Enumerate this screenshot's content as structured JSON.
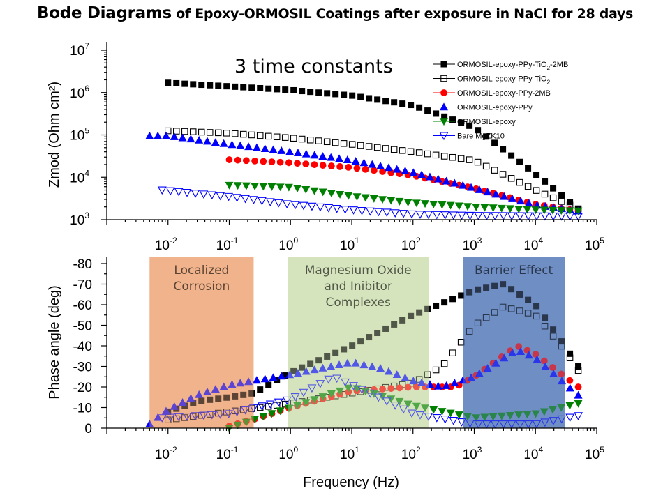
{
  "title": {
    "main": "Bode Diagrams",
    "rest": " of Epoxy-ORMOSIL Coatings after exposure in NaCl for 28 days"
  },
  "chart_data": [
    {
      "type": "scatter",
      "panel": "top",
      "xscale": "log",
      "yscale": "log",
      "xlim": [
        0.001,
        100000
      ],
      "ylim": [
        1000,
        10000000
      ],
      "xlabel": "",
      "ylabel": "Zmod (Ohm cm²)",
      "x_ticks": [
        {
          "b": "10",
          "e": "-2"
        },
        {
          "b": "10",
          "e": "-1"
        },
        {
          "b": "10",
          "e": "0"
        },
        {
          "b": "10",
          "e": "1"
        },
        {
          "b": "10",
          "e": "2"
        },
        {
          "b": "10",
          "e": "3"
        },
        {
          "b": "10",
          "e": "4"
        },
        {
          "b": "10",
          "e": "5"
        }
      ],
      "y_ticks": [
        {
          "b": "10",
          "e": "3"
        },
        {
          "b": "10",
          "e": "4"
        },
        {
          "b": "10",
          "e": "5"
        },
        {
          "b": "10",
          "e": "6"
        },
        {
          "b": "10",
          "e": "7"
        }
      ],
      "annotation": "3 time constants",
      "legend_position": "top-right",
      "legend": [
        {
          "label": "ORMOSIL-epoxy-PPy-TiO",
          "sub": "2",
          "tail": "-2MB"
        },
        {
          "label": "ORMOSIL-epoxy-PPy-TiO",
          "sub": "2",
          "tail": ""
        },
        {
          "label": "ORMOSIL-epoxy-PPy-2MB",
          "sub": "",
          "tail": ""
        },
        {
          "label": "ORMOSIL-epoxy-PPy",
          "sub": "",
          "tail": ""
        },
        {
          "label": "ORMOSIL-epoxy",
          "sub": "",
          "tail": ""
        },
        {
          "label": "Bare MgZK10",
          "sub": "",
          "tail": ""
        }
      ],
      "series": [
        {
          "name": "ORMOSIL-epoxy-PPy-TiO2-2MB",
          "marker": "square",
          "filled": true,
          "color": "#000000",
          "x_range": [
            0.01,
            50000
          ],
          "count": 50,
          "points": [
            [
              0.01,
              1700000
            ],
            [
              0.1,
              1400000
            ],
            [
              1,
              1150000
            ],
            [
              10,
              850000
            ],
            [
              100,
              500000
            ],
            [
              1000,
              150000
            ],
            [
              10000,
              12000
            ],
            [
              50000,
              1800
            ]
          ]
        },
        {
          "name": "ORMOSIL-epoxy-PPy-TiO2",
          "marker": "square",
          "filled": false,
          "color": "#000000",
          "x_range": [
            0.01,
            50000
          ],
          "count": 50,
          "points": [
            [
              0.01,
              125000
            ],
            [
              0.1,
              110000
            ],
            [
              1,
              85000
            ],
            [
              10,
              60000
            ],
            [
              100,
              40000
            ],
            [
              1000,
              25000
            ],
            [
              10000,
              5000
            ],
            [
              50000,
              1800
            ]
          ]
        },
        {
          "name": "ORMOSIL-epoxy-PPy-2MB",
          "marker": "circle",
          "filled": true,
          "color": "#ff0000",
          "x_range": [
            0.1,
            50000
          ],
          "count": 42,
          "points": [
            [
              0.1,
              26000
            ],
            [
              1,
              22000
            ],
            [
              10,
              17000
            ],
            [
              100,
              11000
            ],
            [
              1000,
              5500
            ],
            [
              10000,
              2300
            ],
            [
              50000,
              1600
            ]
          ]
        },
        {
          "name": "ORMOSIL-epoxy-PPy",
          "marker": "triangle-up",
          "filled": true,
          "color": "#0000ff",
          "x_range": [
            0.005,
            50000
          ],
          "count": 53,
          "points": [
            [
              0.005,
              95000
            ],
            [
              0.01,
              95000
            ],
            [
              0.1,
              60000
            ],
            [
              1,
              40000
            ],
            [
              10,
              25000
            ],
            [
              100,
              13000
            ],
            [
              1000,
              5500
            ],
            [
              10000,
              2200
            ],
            [
              50000,
              1600
            ]
          ]
        },
        {
          "name": "ORMOSIL-epoxy",
          "marker": "triangle-down",
          "filled": true,
          "color": "#008000",
          "x_range": [
            0.1,
            50000
          ],
          "count": 42,
          "points": [
            [
              0.1,
              6500
            ],
            [
              1,
              5800
            ],
            [
              10,
              3600
            ],
            [
              100,
              2500
            ],
            [
              1000,
              2000
            ],
            [
              10000,
              1700
            ],
            [
              50000,
              1600
            ]
          ]
        },
        {
          "name": "Bare MgZK10",
          "marker": "triangle-down",
          "filled": false,
          "color": "#0000ff",
          "x_range": [
            0.008,
            50000
          ],
          "count": 51,
          "points": [
            [
              0.008,
              5000
            ],
            [
              0.1,
              3500
            ],
            [
              1,
              2300
            ],
            [
              10,
              1700
            ],
            [
              100,
              1350
            ],
            [
              1000,
              1250
            ],
            [
              50000,
              1200
            ]
          ]
        }
      ]
    },
    {
      "type": "scatter",
      "panel": "bottom",
      "xscale": "log",
      "xlim": [
        0.001,
        100000
      ],
      "ylim": [
        0,
        -80
      ],
      "xlabel": "Frequency (Hz)",
      "ylabel": "Phase angle (deg)",
      "x_ticks": [
        {
          "b": "10",
          "e": "-2"
        },
        {
          "b": "10",
          "e": "-1"
        },
        {
          "b": "10",
          "e": "0"
        },
        {
          "b": "10",
          "e": "1"
        },
        {
          "b": "10",
          "e": "2"
        },
        {
          "b": "10",
          "e": "3"
        },
        {
          "b": "10",
          "e": "4"
        },
        {
          "b": "10",
          "e": "5"
        }
      ],
      "y_ticks": [
        "-80",
        "-70",
        "-60",
        "-50",
        "-40",
        "-30",
        "-20",
        "-10",
        "0"
      ],
      "regions": [
        {
          "lines": [
            "Localized",
            "Corrosion"
          ],
          "x_range": [
            0.005,
            0.25
          ],
          "color": "#f0b48c"
        },
        {
          "lines": [
            "Magnesium Oxide",
            "and Inibitor",
            "Complexes"
          ],
          "x_range": [
            0.9,
            180
          ],
          "color": "#d6e4bc"
        },
        {
          "lines": [
            "Barrier Effect"
          ],
          "x_range": [
            650,
            30000
          ],
          "color": "#6f8fc4"
        }
      ],
      "series": [
        {
          "name": "ORMOSIL-epoxy-PPy-TiO2-2MB",
          "marker": "square",
          "filled": true,
          "color": "#000000",
          "x_range": [
            0.01,
            50000
          ],
          "count": 50,
          "points": [
            [
              0.01,
              -8
            ],
            [
              0.03,
              -13
            ],
            [
              0.1,
              -15
            ],
            [
              0.25,
              -17
            ],
            [
              1,
              -27
            ],
            [
              10,
              -40
            ],
            [
              100,
              -55
            ],
            [
              1000,
              -67
            ],
            [
              3000,
              -70
            ],
            [
              10000,
              -60
            ],
            [
              30000,
              -40
            ],
            [
              50000,
              -30
            ]
          ]
        },
        {
          "name": "ORMOSIL-epoxy-PPy-TiO2",
          "marker": "square",
          "filled": false,
          "color": "#000000",
          "x_range": [
            0.01,
            50000
          ],
          "count": 50,
          "points": [
            [
              0.01,
              -4
            ],
            [
              0.1,
              -8
            ],
            [
              1,
              -12
            ],
            [
              10,
              -17
            ],
            [
              100,
              -22
            ],
            [
              300,
              -30
            ],
            [
              1000,
              -50
            ],
            [
              3000,
              -59
            ],
            [
              10000,
              -55
            ],
            [
              30000,
              -38
            ],
            [
              50000,
              -28
            ]
          ]
        },
        {
          "name": "ORMOSIL-epoxy-PPy-2MB",
          "marker": "circle",
          "filled": true,
          "color": "#ff0000",
          "x_range": [
            0.1,
            50000
          ],
          "count": 42,
          "points": [
            [
              0.1,
              -1
            ],
            [
              0.3,
              -5
            ],
            [
              1,
              -10
            ],
            [
              10,
              -18
            ],
            [
              100,
              -20
            ],
            [
              500,
              -20
            ],
            [
              1000,
              -25
            ],
            [
              5000,
              -40
            ],
            [
              10000,
              -36
            ],
            [
              30000,
              -25
            ],
            [
              50000,
              -20
            ]
          ]
        },
        {
          "name": "ORMOSIL-epoxy-PPy",
          "marker": "triangle-up",
          "filled": true,
          "color": "#0000ff",
          "x_range": [
            0.005,
            50000
          ],
          "count": 53,
          "points": [
            [
              0.005,
              -2
            ],
            [
              0.01,
              -9
            ],
            [
              0.03,
              -16
            ],
            [
              0.1,
              -21
            ],
            [
              1,
              -26
            ],
            [
              10,
              -32
            ],
            [
              30,
              -29
            ],
            [
              100,
              -23
            ],
            [
              300,
              -20
            ],
            [
              1000,
              -25
            ],
            [
              5000,
              -38
            ],
            [
              10000,
              -34
            ],
            [
              50000,
              -16
            ]
          ]
        },
        {
          "name": "ORMOSIL-epoxy",
          "marker": "triangle-down",
          "filled": true,
          "color": "#008000",
          "x_range": [
            0.1,
            50000
          ],
          "count": 42,
          "points": [
            [
              0.1,
              0
            ],
            [
              0.3,
              -5
            ],
            [
              1,
              -10
            ],
            [
              10,
              -20
            ],
            [
              100,
              -11
            ],
            [
              1000,
              -5
            ],
            [
              10000,
              -7
            ],
            [
              50000,
              -12
            ]
          ]
        },
        {
          "name": "Bare MgZK10",
          "marker": "triangle-down",
          "filled": false,
          "color": "#0000ff",
          "x_range": [
            0.008,
            50000
          ],
          "count": 51,
          "points": [
            [
              0.008,
              -5
            ],
            [
              0.1,
              -7
            ],
            [
              1,
              -14
            ],
            [
              5,
              -25
            ],
            [
              20,
              -17
            ],
            [
              100,
              -7
            ],
            [
              1000,
              -2
            ],
            [
              10000,
              -2
            ],
            [
              50000,
              -6
            ]
          ]
        }
      ]
    }
  ]
}
